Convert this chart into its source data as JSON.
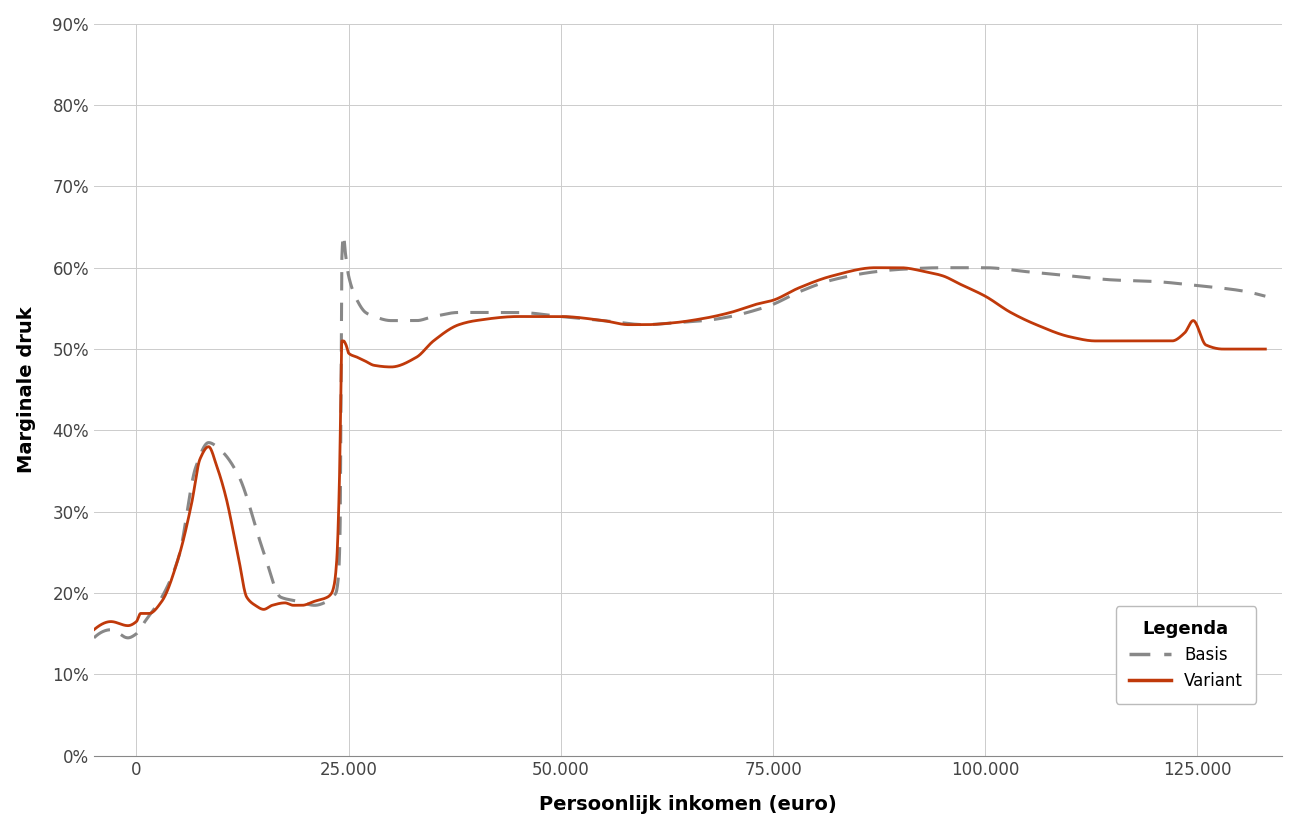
{
  "title": "",
  "xlabel": "Persoonlijk inkomen (euro)",
  "ylabel": "Marginale druk",
  "legend_title": "Legenda",
  "legend_labels": [
    "Basis",
    "Variant"
  ],
  "basis_color": "#888888",
  "variant_color": "#C0390A",
  "background_color": "#FFFFFF",
  "grid_color": "#CCCCCC",
  "ylim": [
    0.0,
    0.9
  ],
  "xlim": [
    -5000,
    135000
  ],
  "yticks": [
    0.0,
    0.1,
    0.2,
    0.3,
    0.4,
    0.5,
    0.6,
    0.7,
    0.8,
    0.9
  ],
  "xticks": [
    0,
    25000,
    50000,
    75000,
    100000,
    125000
  ],
  "xtick_labels": [
    "0",
    "25.000",
    "50.000",
    "75.000",
    "100.000",
    "125.000"
  ]
}
